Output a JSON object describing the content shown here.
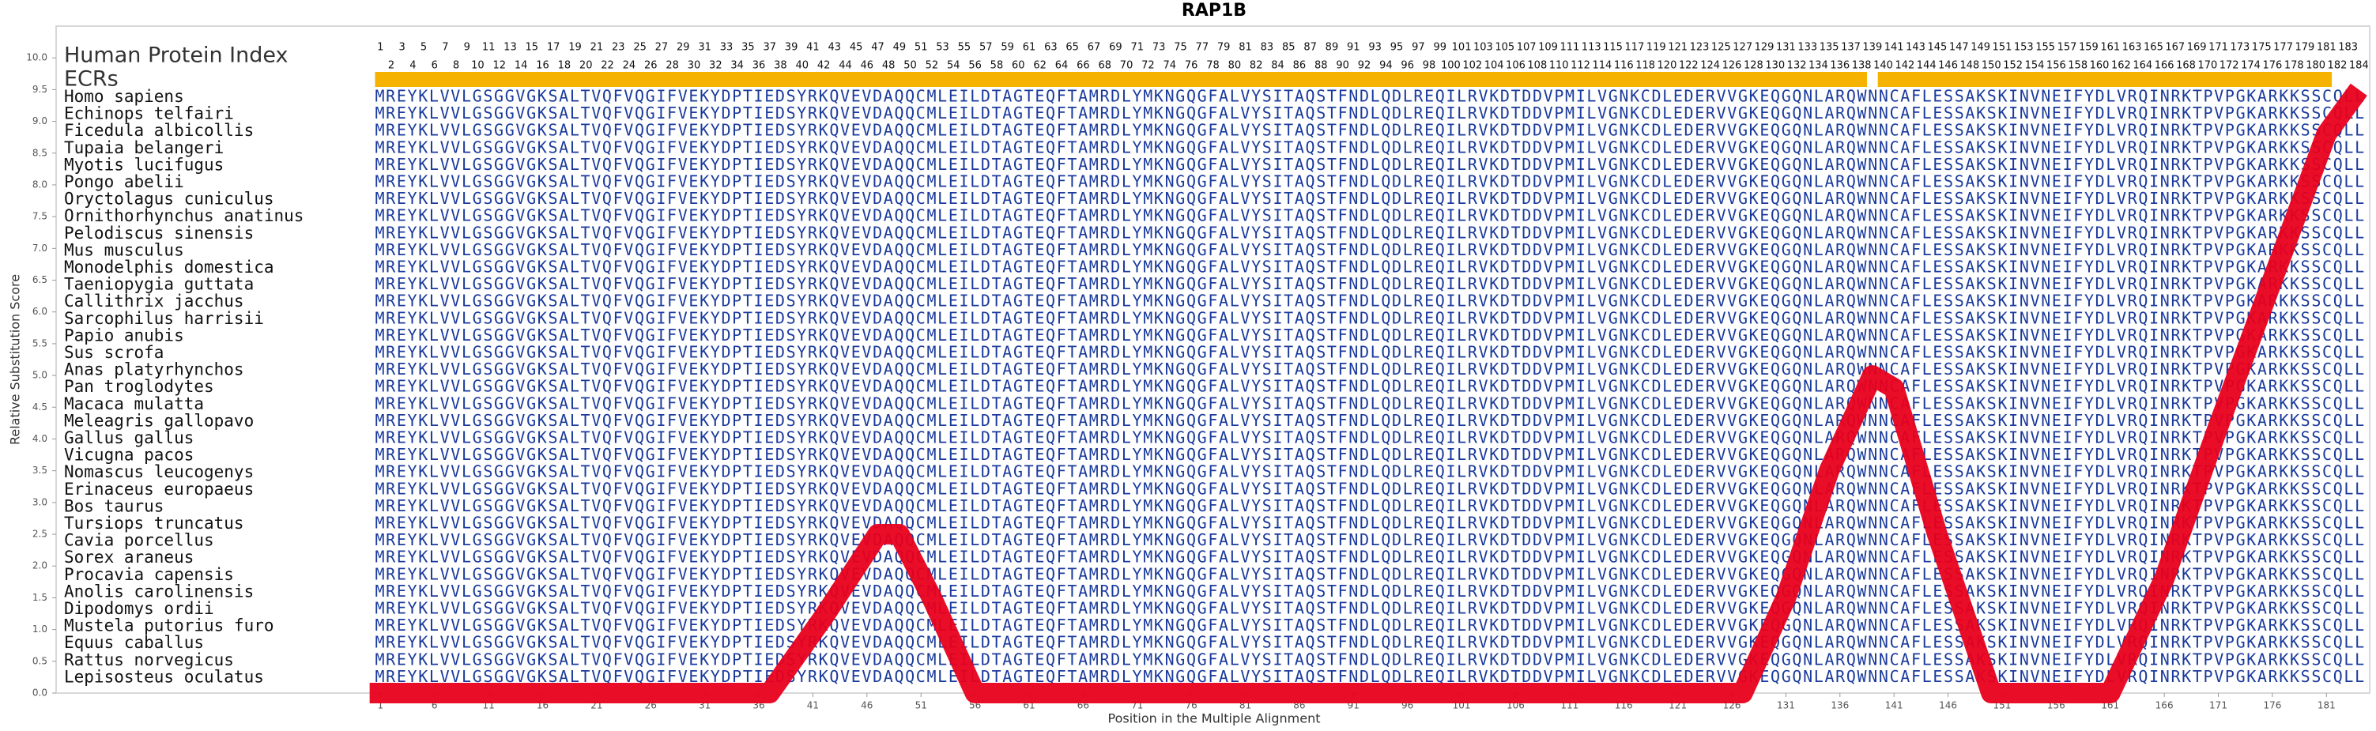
{
  "chart_data": {
    "type": "line",
    "title": "RAP1B",
    "x_label": "Position in the Multiple Alignment",
    "y_label": "Relative Substitution Score",
    "index_label": "Human Protein Index",
    "ecr_label": "ECRs",
    "ecr_color": "#f5b300",
    "ecrs": [
      {
        "start": 1,
        "end": 138
      },
      {
        "start": 140,
        "end": 181
      }
    ],
    "xlim": [
      -29,
      185
    ],
    "ylim": [
      0,
      10.5
    ],
    "xticks": [
      1,
      6,
      11,
      16,
      21,
      26,
      31,
      36,
      41,
      46,
      51,
      56,
      61,
      66,
      71,
      76,
      81,
      86,
      91,
      96,
      101,
      106,
      111,
      116,
      121,
      126,
      131,
      136,
      141,
      146,
      151,
      156,
      161,
      166,
      171,
      176,
      181
    ],
    "yticks": [
      {
        "value": 0,
        "label": "0.0"
      },
      {
        "value": 0.5,
        "label": "0.5"
      },
      {
        "value": 1,
        "label": "1.0"
      },
      {
        "value": 1.5,
        "label": "1.5"
      },
      {
        "value": 2,
        "label": "2.0"
      },
      {
        "value": 2.5,
        "label": "2.5"
      },
      {
        "value": 3,
        "label": "3.0"
      },
      {
        "value": 3.5,
        "label": "3.5"
      },
      {
        "value": 4,
        "label": "4.0"
      },
      {
        "value": 4.5,
        "label": "4.5"
      },
      {
        "value": 5,
        "label": "5.0"
      },
      {
        "value": 5.5,
        "label": "5.5"
      },
      {
        "value": 6,
        "label": "6.0"
      },
      {
        "value": 6.5,
        "label": "6.5"
      },
      {
        "value": 7,
        "label": "7.0"
      },
      {
        "value": 7.5,
        "label": "7.5"
      },
      {
        "value": 8,
        "label": "8.0"
      },
      {
        "value": 8.5,
        "label": "8.5"
      },
      {
        "value": 9,
        "label": "9.0"
      },
      {
        "value": 9.5,
        "label": "9.5"
      },
      {
        "value": 10,
        "label": "10.0"
      }
    ],
    "protein_index": [
      1,
      2,
      3,
      4,
      5,
      6,
      7,
      8,
      9,
      10,
      11,
      12,
      13,
      14,
      15,
      16,
      17,
      18,
      19,
      20,
      21,
      22,
      23,
      24,
      25,
      26,
      27,
      28,
      29,
      30,
      31,
      32,
      33,
      34,
      35,
      36,
      37,
      38,
      39,
      40,
      41,
      42,
      43,
      44,
      45,
      46,
      47,
      48,
      49,
      50,
      51,
      52,
      53,
      54,
      55,
      56,
      57,
      58,
      59,
      60,
      61,
      62,
      63,
      64,
      65,
      66,
      67,
      68,
      69,
      70,
      71,
      72,
      73,
      74,
      75,
      76,
      77,
      78,
      79,
      80,
      81,
      82,
      83,
      84,
      85,
      86,
      87,
      88,
      89,
      90,
      91,
      92,
      93,
      94,
      95,
      96,
      97,
      98,
      99,
      100,
      101,
      102,
      103,
      104,
      105,
      106,
      107,
      108,
      109,
      110,
      111,
      112,
      113,
      114,
      115,
      116,
      117,
      118,
      119,
      120,
      121,
      122,
      123,
      124,
      125,
      126,
      127,
      128,
      129,
      130,
      131,
      132,
      133,
      134,
      135,
      136,
      137,
      138,
      139,
      140,
      141,
      142,
      143,
      144,
      145,
      146,
      147,
      148,
      149,
      150,
      151,
      152,
      153,
      154,
      155,
      156,
      157,
      158,
      159,
      160,
      161,
      162,
      163,
      164,
      165,
      166,
      167,
      168,
      169,
      170,
      171,
      172,
      173,
      174,
      175,
      176,
      177,
      178,
      179,
      180,
      181,
      182,
      183,
      184
    ],
    "sequence_color": "#1a3a9c",
    "alignment": [
      {
        "name": "Homo sapiens",
        "sequence": "MREYKLVVLGSGGVGKSALTVQFVQGIFVEKYDPTIEDSYRKQVEVDAQQCMLEILDTAGTEQFTAMRDLYMKNGQGFALVYSITAQSTFNDLQDLREQILRVKDTDDVPMILVGNKCDLEDERVVGKEQGQNLARQWNNCAFLESSAKSKINVNEIFYDLVRQINRKTPVPGKARKKSSCQLL"
      },
      {
        "name": "Echinops telfairi",
        "sequence": "MREYKLVVLGSGGVGKSALTVQFVQGIFVEKYDPTIEDSYRKQVEVDAQQCMLEILDTAGTEQFTAMRDLYMKNGQGFALVYSITAQSTFNDLQDLREQILRVKDTDDVPMILVGNKCDLEDERVVGKEQGQNLARQWNNCAFLESSAKSKINVNEIFYDLVRQINRKTPVPGKARKKSSCQLL"
      },
      {
        "name": "Ficedula albicollis",
        "sequence": "MREYKLVVLGSGGVGKSALTVQFVQGIFVEKYDPTIEDSYRKQVEVDAQQCMLEILDTAGTEQFTAMRDLYMKNGQGFALVYSITAQSTFNDLQDLREQILRVKDTDDVPMILVGNKCDLEDERVVGKEQGQNLARQWNNCAFLESSAKSKINVNEIFYDLVRQINRKTPVPGKARKKSSCQLL"
      },
      {
        "name": "Tupaia belangeri",
        "sequence": "MREYKLVVLGSGGVGKSALTVQFVQGIFVEKYDPTIEDSYRKQVEVDAQQCMLEILDTAGTEQFTAMRDLYMKNGQGFALVYSITAQSTFNDLQDLREQILRVKDTDDVPMILVGNKCDLEDERVVGKEQGQNLARQWNNCAFLESSAKSKINVNEIFYDLVRQINRKTPVPGKARKKSSCQLL"
      },
      {
        "name": "Myotis lucifugus",
        "sequence": "MREYKLVVLGSGGVGKSALTVQFVQGIFVEKYDPTIEDSYRKQVEVDAQQCMLEILDTAGTEQFTAMRDLYMKNGQGFALVYSITAQSTFNDLQDLREQILRVKDTDDVPMILVGNKCDLEDERVVGKEQGQNLARQWNNCAFLESSAKSKINVNEIFYDLVRQINRKTPVPGKARKKSSCQLL"
      },
      {
        "name": "Pongo abelii",
        "sequence": "MREYKLVVLGSGGVGKSALTVQFVQGIFVEKYDPTIEDSYRKQVEVDAQQCMLEILDTAGTEQFTAMRDLYMKNGQGFALVYSITAQSTFNDLQDLREQILRVKDTDDVPMILVGNKCDLEDERVVGKEQGQNLARQWNNCAFLESSAKSKINVNEIFYDLVRQINRKTPVPGKARKKSSCQLL"
      },
      {
        "name": "Oryctolagus cuniculus",
        "sequence": "MREYKLVVLGSGGVGKSALTVQFVQGIFVEKYDPTIEDSYRKQVEVDAQQCMLEILDTAGTEQFTAMRDLYMKNGQGFALVYSITAQSTFNDLQDLREQILRVKDTDDVPMILVGNKCDLEDERVVGKEQGQNLARQWNNCAFLESSAKSKINVNEIFYDLVRQINRKTPVPGKARKKSSCQLL"
      },
      {
        "name": "Ornithorhynchus anatinus",
        "sequence": "MREYKLVVLGSGGVGKSALTVQFVQGIFVEKYDPTIEDSYRKQVEVDAQQCMLEILDTAGTEQFTAMRDLYMKNGQGFALVYSITAQSTFNDLQDLREQILRVKDTDDVPMILVGNKCDLEDERVVGKEQGQNLARQWNNCAFLESSAKSKINVNEIFYDLVRQINRKTPVPGKARKKSSCQLL"
      },
      {
        "name": "Pelodiscus sinensis",
        "sequence": "MREYKLVVLGSGGVGKSALTVQFVQGIFVEKYDPTIEDSYRKQVEVDAQQCMLEILDTAGTEQFTAMRDLYMKNGQGFALVYSITAQSTFNDLQDLREQILRVKDTDDVPMILVGNKCDLEDERVVGKEQGQNLARQWNNCAFLESSAKSKINVNEIFYDLVRQINRKTPVPGKARKKSSCQLL"
      },
      {
        "name": "Mus musculus",
        "sequence": "MREYKLVVLGSGGVGKSALTVQFVQGIFVEKYDPTIEDSYRKQVEVDAQQCMLEILDTAGTEQFTAMRDLYMKNGQGFALVYSITAQSTFNDLQDLREQILRVKDTDDVPMILVGNKCDLEDERVVGKEQGQNLARQWNNCAFLESSAKSKINVNEIFYDLVRQINRKTPVPGKARKKSSCQLL"
      },
      {
        "name": "Monodelphis domestica",
        "sequence": "MREYKLVVLGSGGVGKSALTVQFVQGIFVEKYDPTIEDSYRKQVEVDAQQCMLEILDTAGTEQFTAMRDLYMKNGQGFALVYSITAQSTFNDLQDLREQILRVKDTDDVPMILVGNKCDLEDERVVGKEQGQNLARQWNNCAFLESSAKSKINVNEIFYDLVRQINRKTPVPGKARKKSSCQLL"
      },
      {
        "name": "Taeniopygia guttata",
        "sequence": "MREYKLVVLGSGGVGKSALTVQFVQGIFVEKYDPTIEDSYRKQVEVDAQQCMLEILDTAGTEQFTAMRDLYMKNGQGFALVYSITAQSTFNDLQDLREQILRVKDTDDVPMILVGNKCDLEDERVVGKEQGQNLARQWNNCAFLESSAKSKINVNEIFYDLVRQINRKTPVPGKARKKSSCQLL"
      },
      {
        "name": "Callithrix jacchus",
        "sequence": "MREYKLVVLGSGGVGKSALTVQFVQGIFVEKYDPTIEDSYRKQVEVDAQQCMLEILDTAGTEQFTAMRDLYMKNGQGFALVYSITAQSTFNDLQDLREQILRVKDTDDVPMILVGNKCDLEDERVVGKEQGQNLARQWNNCAFLESSAKSKINVNEIFYDLVRQINRKTPVPGKARKKSSCQLL"
      },
      {
        "name": "Sarcophilus harrisii",
        "sequence": "MREYKLVVLGSGGVGKSALTVQFVQGIFVEKYDPTIEDSYRKQVEVDAQQCMLEILDTAGTEQFTAMRDLYMKNGQGFALVYSITAQSTFNDLQDLREQILRVKDTDDVPMILVGNKCDLEDERVVGKEQGQNLARQWNNCAFLESSAKSKINVNEIFYDLVRQINRKTPVPGKARKKSSCQLL"
      },
      {
        "name": "Papio anubis",
        "sequence": "MREYKLVVLGSGGVGKSALTVQFVQGIFVEKYDPTIEDSYRKQVEVDAQQCMLEILDTAGTEQFTAMRDLYMKNGQGFALVYSITAQSTFNDLQDLREQILRVKDTDDVPMILVGNKCDLEDERVVGKEQGQNLARQWNNCAFLESSAKSKINVNEIFYDLVRQINRKTPVPGKARKKSSCQLL"
      },
      {
        "name": "Sus scrofa",
        "sequence": "MREYKLVVLGSGGVGKSALTVQFVQGIFVEKYDPTIEDSYRKQVEVDAQQCMLEILDTAGTEQFTAMRDLYMKNGQGFALVYSITAQSTFNDLQDLREQILRVKDTDDVPMILVGNKCDLEDERVVGKEQGQNLARQWNNCAFLESSAKSKINVNEIFYDLVRQINRKTPVPGKARKKSSCQLL"
      },
      {
        "name": "Anas platyrhynchos",
        "sequence": "MREYKLVVLGSGGVGKSALTVQFVQGIFVEKYDPTIEDSYRKQVEVDAQQCMLEILDTAGTEQFTAMRDLYMKNGQGFALVYSITAQSTFNDLQDLREQILRVKDTDDVPMILVGNKCDLEDERVVGKEQGQNLARQWNNCAFLESSAKSKINVNEIFYDLVRQINRKTPVPGKARKKSSCQLL"
      },
      {
        "name": "Pan troglodytes",
        "sequence": "MREYKLVVLGSGGVGKSALTVQFVQGIFVEKYDPTIEDSYRKQVEVDAQQCMLEILDTAGTEQFTAMRDLYMKNGQGFALVYSITAQSTFNDLQDLREQILRVKDTDDVPMILVGNKCDLEDERVVGKEQGQNLARQWNNCAFLESSAKSKINVNEIFYDLVRQINRKTPVPGKARKKSSCQLL"
      },
      {
        "name": "Macaca mulatta",
        "sequence": "MREYKLVVLGSGGVGKSALTVQFVQGIFVEKYDPTIEDSYRKQVEVDAQQCMLEILDTAGTEQFTAMRDLYMKNGQGFALVYSITAQSTFNDLQDLREQILRVKDTDDVPMILVGNKCDLEDERVVGKEQGQNLARQWNNCAFLESSAKSKINVNEIFYDLVRQINRKTPVPGKARKKSSCQLL"
      },
      {
        "name": "Meleagris gallopavo",
        "sequence": "MREYKLVVLGSGGVGKSALTVQFVQGIFVEKYDPTIEDSYRKQVEVDAQQCMLEILDTAGTEQFTAMRDLYMKNGQGFALVYSITAQSTFNDLQDLREQILRVKDTDDVPMILVGNKCDLEDERVVGKEQGQNLARQWNNCAFLESSAKSKINVNEIFYDLVRQINRKTPVPGKARKKSSCQLL"
      },
      {
        "name": "Gallus gallus",
        "sequence": "MREYKLVVLGSGGVGKSALTVQFVQGIFVEKYDPTIEDSYRKQVEVDAQQCMLEILDTAGTEQFTAMRDLYMKNGQGFALVYSITAQSTFNDLQDLREQILRVKDTDDVPMILVGNKCDLEDERVVGKEQGQNLARQWNNCAFLESSAKSKINVNEIFYDLVRQINRKTPVPGKARKKSSCQLL"
      },
      {
        "name": "Vicugna pacos",
        "sequence": "MREYKLVVLGSGGVGKSALTVQFVQGIFVEKYDPTIEDSYRKQVEVDAQQCMLEILDTAGTEQFTAMRDLYMKNGQGFALVYSITAQSTFNDLQDLREQILRVKDTDDVPMILVGNKCDLEDERVVGKEQGQNLARQWNNCAFLESSAKSKINVNEIFYDLVRQINRKTPVPGKARKKSSCQLL"
      },
      {
        "name": "Nomascus leucogenys",
        "sequence": "MREYKLVVLGSGGVGKSALTVQFVQGIFVEKYDPTIEDSYRKQVEVDAQQCMLEILDTAGTEQFTAMRDLYMKNGQGFALVYSITAQSTFNDLQDLREQILRVKDTDDVPMILVGNKCDLEDERVVGKEQGQNLARQWNNCAFLESSAKSKINVNEIFYDLVRQINRKTPVPGKARKKSSCQLL"
      },
      {
        "name": "Erinaceus europaeus",
        "sequence": "MREYKLVVLGSGGVGKSALTVQFVQGIFVEKYDPTIEDSYRKQVEVDAQQCMLEILDTAGTEQFTAMRDLYMKNGQGFALVYSITAQSTFNDLQDLREQILRVKDTDDVPMILVGNKCDLEDERVVGKEQGQNLARQWNNCAFLESSAKSKINVNEIFYDLVRQINRKTPVPGKARKKSSCQLL"
      },
      {
        "name": "Bos taurus",
        "sequence": "MREYKLVVLGSGGVGKSALTVQFVQGIFVEKYDPTIEDSYRKQVEVDAQQCMLEILDTAGTEQFTAMRDLYMKNGQGFALVYSITAQSTFNDLQDLREQILRVKDTDDVPMILVGNKCDLEDERVVGKEQGQNLARQWNNCAFLESSAKSKINVNEIFYDLVRQINRKTPVPGKARKKSSCQLL"
      },
      {
        "name": "Tursiops truncatus",
        "sequence": "MREYKLVVLGSGGVGKSALTVQFVQGIFVEKYDPTIEDSYRKQVEVDAQQCMLEILDTAGTEQFTAMRDLYMKNGQGFALVYSITAQSTFNDLQDLREQILRVKDTDDVPMILVGNKCDLEDERVVGKEQGQNLARQWNNCAFLESSAKSKINVNEIFYDLVRQINRKTPVPGKARKKSSCQLL"
      },
      {
        "name": "Cavia porcellus",
        "sequence": "MREYKLVVLGSGGVGKSALTVQFVQGIFVEKYDPTIEDSYRKQVEVDAQQCMLEILDTAGTEQFTAMRDLYMKNGQGFALVYSITAQSTFNDLQDLREQILRVKDTDDVPMILVGNKCDLEDERVVGKEQGQNLARQWNNCAFLESSAKSKINVNEIFYDLVRQINRKTPVPGKARKKSSCQLL"
      },
      {
        "name": "Sorex araneus",
        "sequence": "MREYKLVVLGSGGVGKSALTVQFVQGIFVEKYDPTIEDSYRKQVEVDAQQCMLEILDTAGTEQFTAMRDLYMKNGQGFALVYSITAQSTFNDLQDLREQILRVKDTDDVPMILVGNKCDLEDERVVGKEQGQNLARQWNNCAFLESSAKSKINVNEIFYDLVRQINRKTPVPGKARKKSSCQLL"
      },
      {
        "name": "Procavia capensis",
        "sequence": "MREYKLVVLGSGGVGKSALTVQFVQGIFVEKYDPTIEDSYRKQVEVDAQQCMLEILDTAGTEQFTAMRDLYMKNGQGFALVYSITAQSTFNDLQDLREQILRVKDTDDVPMILVGNKCDLEDERVVGKEQGQNLARQWNNCAFLESSAKSKINVNEIFYDLVRQINRKTPVPGKARKKSSCQLL"
      },
      {
        "name": "Anolis carolinensis",
        "sequence": "MREYKLVVLGSGGVGKSALTVQFVQGIFVEKYDPTIEDSYRKQVEVDAQQCMLEILDTAGTEQFTAMRDLYMKNGQGFALVYSITAQSTFNDLQDLREQILRVKDTDDVPMILVGNKCDLEDERVVGKEQGQNLARQWNNCAFLESSAKSKINVNEIFYDLVRQINRKTPVPGKARKKSSCQLL"
      },
      {
        "name": "Dipodomys ordii",
        "sequence": "MREYKLVVLGSGGVGKSALTVQFVQGIFVEKYDPTIEDSYRKQVEVDAQQCMLEILDTAGTEQFTAMRDLYMKNGQGFALVYSITAQSTFNDLQDLREQILRVKDTDDVPMILVGNKCDLEDERVVGKEQGQNLARQWNNCAFLESSAKSKINVNEIFYDLVRQINRKTPVPGKARKKSSCQLL"
      },
      {
        "name": "Mustela putorius furo",
        "sequence": "MREYKLVVLGSGGVGKSALTVQFVQGIFVEKYDPTIEDSYRKQVEVDAQQCMLEILDTAGTEQFTAMRDLYMKNGQGFALVYSITAQSTFNDLQDLREQILRVKDTDDVPMILVGNKCDLEDERVVGKEQGQNLARQWNNCAFLESSAKSKINVNEIFYDLVRQINRKTPVPGKARKKSSCQLL"
      },
      {
        "name": "Equus caballus",
        "sequence": "MREYKLVVLGSGGVGKSALTVQFVQGIFVEKYDPTIEDSYRKQVEVDAQQCMLEILDTAGTEQFTAMRDLYMKNGQGFALVYSITAQSTFNDLQDLREQILRVKDTDDVPMILVGNKCDLEDERVVGKEQGQNLARQWNNCAFLESSAKSKINVNEIFYDLVRQINRKTPVPGKARKKSSCQLL"
      },
      {
        "name": "Rattus norvegicus",
        "sequence": "MREYKLVVLGSGGVGKSALTVQFVQGIFVEKYDPTIEDSYRKQVEVDAQQCMLEILDTAGTEQFTAMRDLYMKNGQGFALVYSITAQSTFNDLQDLREQILRVKDTDDVPMILVGNKCDLEDERVVGKEQGQNLARQWNNCAFLESSAKSKINVNEIFYDLVRQINRKTPVPGKARKKSSCQLL"
      },
      {
        "name": "Lepisosteus oculatus",
        "sequence": "MREYKLVVLGSGGVGKSALTVQFVQGIFVEKYDPTIEDSYRKQVEVDAQQCMLEILDTAGTEQFTAMRDLYMKNGQGFALVYSITAQSTFNDLQDLREQILRVKDTDDVPMILVGNKCDLEDERVVGKEQGQNLARQWNNCAFLESSAKSKINVNEIFYDLVRQINRKTPVPGKARKKSSCQLL"
      }
    ],
    "color": "#e8001c",
    "x": [
      0,
      37,
      42,
      47,
      49,
      52,
      56,
      127,
      131,
      135,
      139,
      141,
      145,
      150,
      161,
      166,
      171,
      176,
      181,
      184
    ],
    "values": [
      0,
      0,
      1.2,
      2.5,
      2.5,
      1.5,
      0,
      0,
      1.5,
      3.5,
      5,
      4.8,
      2.5,
      0,
      0,
      1.8,
      4.2,
      6.5,
      8.8,
      9.5
    ]
  }
}
